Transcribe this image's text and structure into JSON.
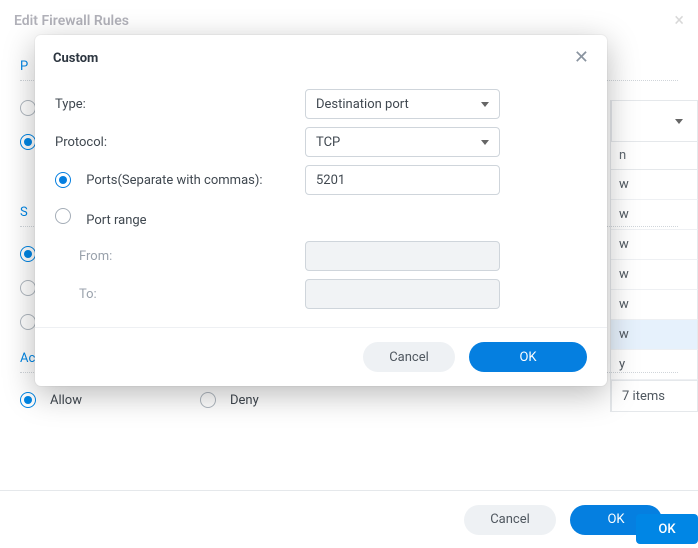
{
  "colors": {
    "primary": "#057fe0",
    "text": "#404850",
    "muted": "#9aa2ac",
    "border": "#cfd5db"
  },
  "bg_dialog": {
    "title": "Edit Firewall Rules",
    "sections": {
      "action_title": "Action"
    },
    "action_radios": {
      "allow": "Allow",
      "deny": "Deny",
      "selected": "allow"
    },
    "footer": {
      "cancel": "Cancel",
      "ok": "OK"
    }
  },
  "bg_table": {
    "subheader": "n",
    "rows": [
      "w",
      "w",
      "w",
      "w",
      "w",
      "w",
      "y"
    ],
    "highlight_index": 5,
    "footer": "7 items"
  },
  "bg_far_ok_label": "OK",
  "modal": {
    "title": "Custom",
    "type_label": "Type:",
    "protocol_label": "Protocol:",
    "ports_label": "Ports(Separate with commas):",
    "portrange_label": "Port range",
    "from_label": "From:",
    "to_label": "To:",
    "type_value": "Destination port",
    "protocol_value": "TCP",
    "ports_value": "5201",
    "port_mode": "ports",
    "from_value": "",
    "to_value": "",
    "footer": {
      "cancel": "Cancel",
      "ok": "OK"
    }
  }
}
